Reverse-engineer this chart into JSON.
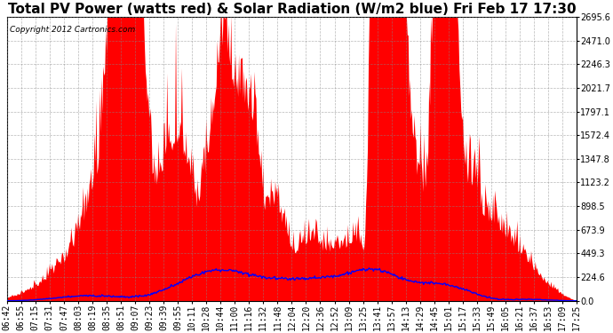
{
  "title": "Total PV Power (watts red) & Solar Radiation (W/m2 blue) Fri Feb 17 17:30",
  "copyright": "Copyright 2012 Cartronics.com",
  "ylim": [
    0.0,
    2695.6
  ],
  "yticks": [
    0.0,
    224.6,
    449.3,
    673.9,
    898.5,
    1123.2,
    1347.8,
    1572.4,
    1797.1,
    2021.7,
    2246.3,
    2471.0,
    2695.6
  ],
  "pv_color": "red",
  "solar_color": "blue",
  "bg_color": "white",
  "grid_color": "#888888",
  "title_fontsize": 11,
  "tick_fontsize": 7,
  "x_tick_labels": [
    "06:42",
    "06:55",
    "07:15",
    "07:31",
    "07:47",
    "08:03",
    "08:19",
    "08:35",
    "08:51",
    "09:07",
    "09:23",
    "09:39",
    "09:55",
    "10:11",
    "10:28",
    "10:44",
    "11:00",
    "11:16",
    "11:32",
    "11:48",
    "12:04",
    "12:20",
    "12:36",
    "12:52",
    "13:09",
    "13:25",
    "13:41",
    "13:57",
    "14:13",
    "14:29",
    "14:45",
    "15:01",
    "15:17",
    "15:33",
    "15:49",
    "16:05",
    "16:21",
    "16:37",
    "16:53",
    "17:09",
    "17:25"
  ]
}
